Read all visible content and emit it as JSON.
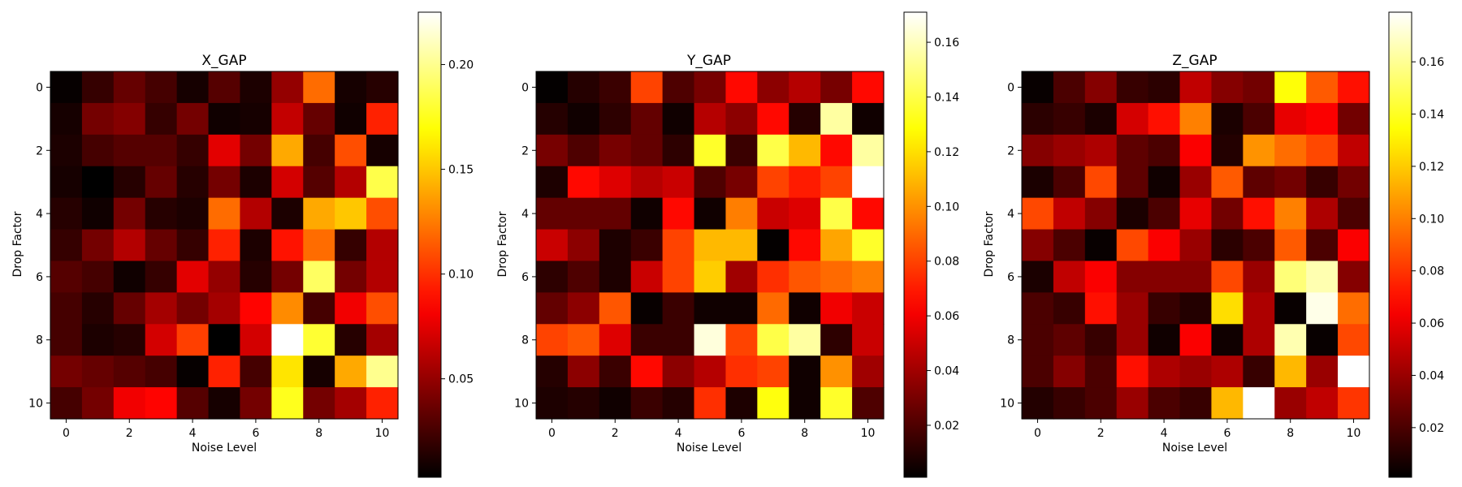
{
  "chart_data": [
    {
      "type": "heatmap",
      "title": "X_GAP",
      "xlabel": "Noise Level",
      "ylabel": "Drop Factor",
      "x": [
        0,
        1,
        2,
        3,
        4,
        5,
        6,
        7,
        8,
        9,
        10
      ],
      "y": [
        0,
        1,
        2,
        3,
        4,
        5,
        6,
        7,
        8,
        9,
        10
      ],
      "x_ticks": [
        "0",
        "2",
        "4",
        "6",
        "8",
        "10"
      ],
      "y_ticks": [
        "0",
        "2",
        "4",
        "6",
        "8",
        "10"
      ],
      "colormap": "hot",
      "vmin": 0.003,
      "vmax": 0.225,
      "colorbar_ticks": [
        "0.05",
        "0.10",
        "0.15",
        "0.20"
      ],
      "colorbar_tick_values": [
        0.05,
        0.1,
        0.15,
        0.2
      ],
      "values": [
        [
          0.005,
          0.02,
          0.035,
          0.025,
          0.01,
          0.03,
          0.012,
          0.05,
          0.12,
          0.01,
          0.015
        ],
        [
          0.01,
          0.04,
          0.045,
          0.02,
          0.04,
          0.008,
          0.01,
          0.065,
          0.035,
          0.008,
          0.095
        ],
        [
          0.012,
          0.025,
          0.03,
          0.03,
          0.02,
          0.075,
          0.04,
          0.14,
          0.025,
          0.11,
          0.01
        ],
        [
          0.01,
          0.003,
          0.015,
          0.035,
          0.015,
          0.04,
          0.012,
          0.07,
          0.03,
          0.06,
          0.185
        ],
        [
          0.015,
          0.008,
          0.04,
          0.015,
          0.012,
          0.12,
          0.06,
          0.012,
          0.14,
          0.15,
          0.11
        ],
        [
          0.02,
          0.04,
          0.06,
          0.035,
          0.02,
          0.095,
          0.012,
          0.09,
          0.12,
          0.02,
          0.06
        ],
        [
          0.03,
          0.025,
          0.008,
          0.02,
          0.075,
          0.05,
          0.015,
          0.04,
          0.19,
          0.04,
          0.06
        ],
        [
          0.025,
          0.015,
          0.035,
          0.055,
          0.04,
          0.055,
          0.085,
          0.13,
          0.025,
          0.08,
          0.11
        ],
        [
          0.025,
          0.012,
          0.015,
          0.07,
          0.105,
          0.003,
          0.07,
          0.225,
          0.18,
          0.015,
          0.055
        ],
        [
          0.04,
          0.035,
          0.03,
          0.025,
          0.005,
          0.095,
          0.025,
          0.16,
          0.01,
          0.14,
          0.2
        ],
        [
          0.025,
          0.04,
          0.08,
          0.085,
          0.03,
          0.01,
          0.04,
          0.175,
          0.04,
          0.055,
          0.095
        ]
      ]
    },
    {
      "type": "heatmap",
      "title": "Y_GAP",
      "xlabel": "Noise Level",
      "ylabel": "Drop Factor",
      "x": [
        0,
        1,
        2,
        3,
        4,
        5,
        6,
        7,
        8,
        9,
        10
      ],
      "y": [
        0,
        1,
        2,
        3,
        4,
        5,
        6,
        7,
        8,
        9,
        10
      ],
      "x_ticks": [
        "0",
        "2",
        "4",
        "6",
        "8",
        "10"
      ],
      "y_ticks": [
        "0",
        "2",
        "4",
        "6",
        "8",
        "10"
      ],
      "colormap": "hot",
      "vmin": 0.001,
      "vmax": 0.171,
      "colorbar_ticks": [
        "0.02",
        "0.04",
        "0.06",
        "0.08",
        "0.10",
        "0.12",
        "0.14",
        "0.16"
      ],
      "colorbar_tick_values": [
        0.02,
        0.04,
        0.06,
        0.08,
        0.1,
        0.12,
        0.14,
        0.16
      ],
      "values": [
        [
          0.002,
          0.01,
          0.015,
          0.08,
          0.02,
          0.03,
          0.065,
          0.035,
          0.045,
          0.03,
          0.065
        ],
        [
          0.01,
          0.005,
          0.012,
          0.025,
          0.005,
          0.045,
          0.035,
          0.065,
          0.01,
          0.155,
          0.005
        ],
        [
          0.03,
          0.02,
          0.03,
          0.025,
          0.012,
          0.135,
          0.015,
          0.14,
          0.11,
          0.065,
          0.155
        ],
        [
          0.008,
          0.065,
          0.055,
          0.045,
          0.05,
          0.02,
          0.03,
          0.08,
          0.07,
          0.08,
          0.171
        ],
        [
          0.025,
          0.025,
          0.025,
          0.005,
          0.065,
          0.005,
          0.095,
          0.05,
          0.055,
          0.14,
          0.065
        ],
        [
          0.05,
          0.035,
          0.008,
          0.015,
          0.08,
          0.11,
          0.11,
          0.002,
          0.065,
          0.105,
          0.135
        ],
        [
          0.012,
          0.02,
          0.008,
          0.05,
          0.08,
          0.115,
          0.04,
          0.075,
          0.085,
          0.09,
          0.095
        ],
        [
          0.025,
          0.035,
          0.085,
          0.003,
          0.015,
          0.005,
          0.005,
          0.09,
          0.005,
          0.06,
          0.05
        ],
        [
          0.08,
          0.085,
          0.055,
          0.015,
          0.015,
          0.165,
          0.08,
          0.14,
          0.155,
          0.012,
          0.05
        ],
        [
          0.01,
          0.035,
          0.015,
          0.065,
          0.035,
          0.045,
          0.075,
          0.08,
          0.005,
          0.1,
          0.04
        ],
        [
          0.008,
          0.01,
          0.005,
          0.015,
          0.01,
          0.075,
          0.008,
          0.13,
          0.005,
          0.135,
          0.02
        ]
      ]
    },
    {
      "type": "heatmap",
      "title": "Z_GAP",
      "xlabel": "Noise Level",
      "ylabel": "Drop Factor",
      "x": [
        0,
        1,
        2,
        3,
        4,
        5,
        6,
        7,
        8,
        9,
        10
      ],
      "y": [
        0,
        1,
        2,
        3,
        4,
        5,
        6,
        7,
        8,
        9,
        10
      ],
      "x_ticks": [
        "0",
        "2",
        "4",
        "6",
        "8",
        "10"
      ],
      "y_ticks": [
        "0",
        "2",
        "4",
        "6",
        "8",
        "10"
      ],
      "colormap": "hot",
      "vmin": 0.001,
      "vmax": 0.179,
      "colorbar_ticks": [
        "0.02",
        "0.04",
        "0.06",
        "0.08",
        "0.10",
        "0.12",
        "0.14",
        "0.16"
      ],
      "colorbar_tick_values": [
        0.02,
        0.04,
        0.06,
        0.08,
        0.1,
        0.12,
        0.14,
        0.16
      ],
      "values": [
        [
          0.003,
          0.02,
          0.035,
          0.015,
          0.012,
          0.05,
          0.035,
          0.03,
          0.135,
          0.09,
          0.07
        ],
        [
          0.012,
          0.015,
          0.008,
          0.055,
          0.07,
          0.1,
          0.008,
          0.02,
          0.06,
          0.065,
          0.03
        ],
        [
          0.035,
          0.04,
          0.045,
          0.025,
          0.02,
          0.065,
          0.01,
          0.105,
          0.095,
          0.085,
          0.05
        ],
        [
          0.008,
          0.02,
          0.085,
          0.025,
          0.005,
          0.04,
          0.09,
          0.025,
          0.03,
          0.015,
          0.03
        ],
        [
          0.085,
          0.05,
          0.035,
          0.008,
          0.02,
          0.06,
          0.03,
          0.07,
          0.1,
          0.045,
          0.02
        ],
        [
          0.035,
          0.02,
          0.003,
          0.085,
          0.065,
          0.04,
          0.012,
          0.02,
          0.09,
          0.02,
          0.065
        ],
        [
          0.008,
          0.05,
          0.065,
          0.035,
          0.035,
          0.035,
          0.085,
          0.04,
          0.155,
          0.165,
          0.035
        ],
        [
          0.02,
          0.015,
          0.07,
          0.04,
          0.015,
          0.01,
          0.125,
          0.045,
          0.003,
          0.175,
          0.095
        ],
        [
          0.02,
          0.025,
          0.015,
          0.04,
          0.005,
          0.065,
          0.005,
          0.045,
          0.165,
          0.003,
          0.085
        ],
        [
          0.02,
          0.035,
          0.02,
          0.07,
          0.045,
          0.04,
          0.045,
          0.015,
          0.115,
          0.04,
          0.179
        ],
        [
          0.01,
          0.015,
          0.02,
          0.04,
          0.02,
          0.015,
          0.115,
          0.179,
          0.04,
          0.05,
          0.08
        ]
      ]
    }
  ]
}
